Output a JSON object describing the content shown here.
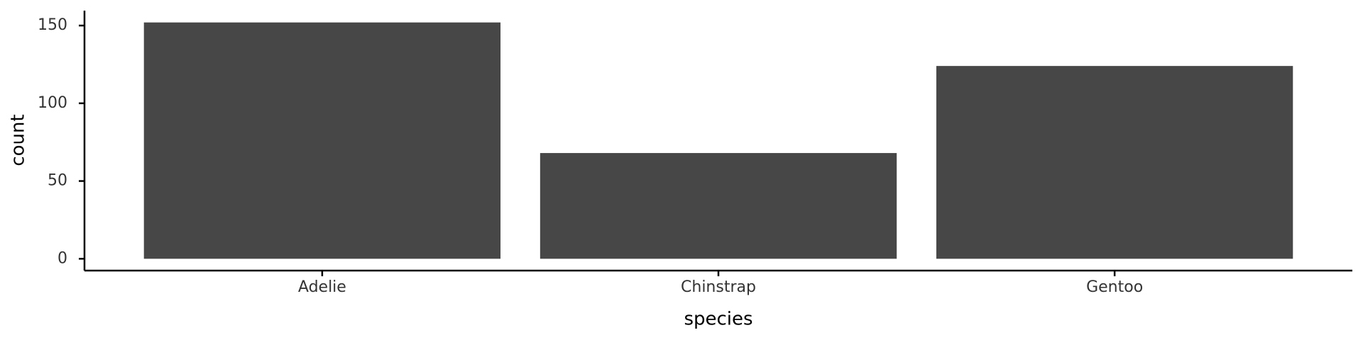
{
  "chart_data": {
    "type": "bar",
    "x_label": "species",
    "y_label": "count",
    "categories": [
      "Adelie",
      "Chinstrap",
      "Gentoo"
    ],
    "values": [
      152,
      68,
      124
    ],
    "color": "#474747",
    "ylim": [
      -7.6,
      159.6
    ],
    "yticks": [
      0,
      50,
      100,
      150
    ],
    "grid": false
  }
}
